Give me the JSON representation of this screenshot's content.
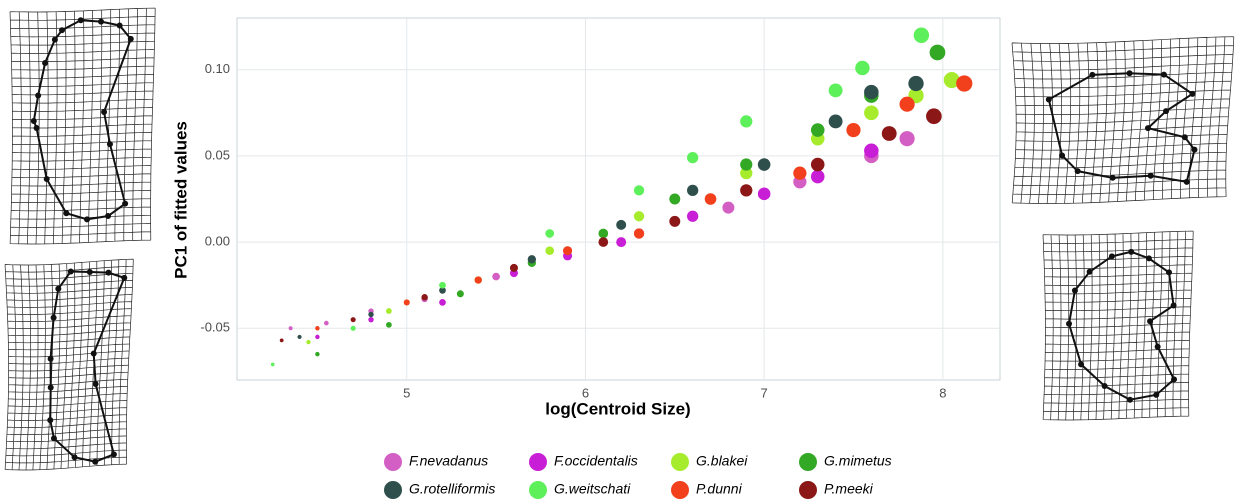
{
  "chart_data": {
    "type": "scatter",
    "x_label": "log(Centroid Size)",
    "y_label": "PC1 of fitted values",
    "xlim": [
      4.05,
      8.32
    ],
    "ylim": [
      -0.08,
      0.13
    ],
    "xticks": [
      5,
      6,
      7,
      8
    ],
    "yticks": [
      -0.05,
      {
        "value": 0,
        "label": "0.00"
      },
      0.05,
      {
        "value": 0.1,
        "label": "0.10"
      }
    ],
    "grid": true,
    "legend": "bottom",
    "series": [
      {
        "name": "F.nevadanus",
        "color": "#d45fc4",
        "x": [
          4.35,
          4.55,
          4.8,
          5.1,
          5.5,
          5.9,
          6.3,
          6.8,
          7.2,
          7.6,
          7.8
        ],
        "values": [
          -0.05,
          -0.047,
          -0.04,
          -0.033,
          -0.02,
          -0.005,
          0.005,
          0.02,
          0.035,
          0.05,
          0.06
        ]
      },
      {
        "name": "F.occidentalis",
        "color": "#c81ed6",
        "x": [
          4.5,
          4.8,
          5.2,
          5.6,
          5.9,
          6.2,
          6.6,
          7.0,
          7.3,
          7.6
        ],
        "values": [
          -0.055,
          -0.045,
          -0.035,
          -0.018,
          -0.008,
          0.0,
          0.015,
          0.028,
          0.038,
          0.053
        ]
      },
      {
        "name": "G.blakei",
        "color": "#a6ec2c",
        "x": [
          4.45,
          4.9,
          5.4,
          5.8,
          6.3,
          6.9,
          7.3,
          7.6,
          7.85,
          8.05
        ],
        "values": [
          -0.058,
          -0.04,
          -0.022,
          -0.005,
          0.015,
          0.04,
          0.06,
          0.075,
          0.085,
          0.094
        ]
      },
      {
        "name": "G.mimetus",
        "color": "#33a825",
        "x": [
          4.5,
          4.9,
          5.3,
          5.7,
          6.1,
          6.5,
          6.9,
          7.3,
          7.6,
          7.97
        ],
        "values": [
          -0.065,
          -0.048,
          -0.03,
          -0.012,
          0.005,
          0.025,
          0.045,
          0.065,
          0.085,
          0.11
        ]
      },
      {
        "name": "G.rotelliformis",
        "color": "#2f4f4c",
        "x": [
          4.4,
          4.8,
          5.2,
          5.7,
          6.2,
          6.6,
          7.0,
          7.4,
          7.6,
          7.85
        ],
        "values": [
          -0.055,
          -0.042,
          -0.028,
          -0.01,
          0.01,
          0.03,
          0.045,
          0.07,
          0.087,
          0.092
        ]
      },
      {
        "name": "G.weitschati",
        "color": "#5ef05a",
        "x": [
          4.25,
          4.7,
          5.2,
          5.8,
          6.3,
          6.6,
          6.9,
          7.4,
          7.55,
          7.88
        ],
        "values": [
          -0.071,
          -0.05,
          -0.025,
          0.005,
          0.03,
          0.049,
          0.07,
          0.088,
          0.101,
          0.12
        ]
      },
      {
        "name": "P.dunni",
        "color": "#f2401c",
        "x": [
          4.5,
          5.0,
          5.4,
          5.9,
          6.3,
          6.7,
          7.2,
          7.5,
          7.8,
          8.12
        ],
        "values": [
          -0.05,
          -0.035,
          -0.022,
          -0.005,
          0.005,
          0.025,
          0.04,
          0.065,
          0.08,
          0.092
        ]
      },
      {
        "name": "P.meeki",
        "color": "#8b1717",
        "x": [
          4.3,
          4.7,
          5.1,
          5.6,
          6.1,
          6.5,
          6.9,
          7.3,
          7.7,
          7.95
        ],
        "values": [
          -0.057,
          -0.045,
          -0.032,
          -0.015,
          0.0,
          0.012,
          0.03,
          0.045,
          0.063,
          0.073
        ]
      }
    ]
  }
}
